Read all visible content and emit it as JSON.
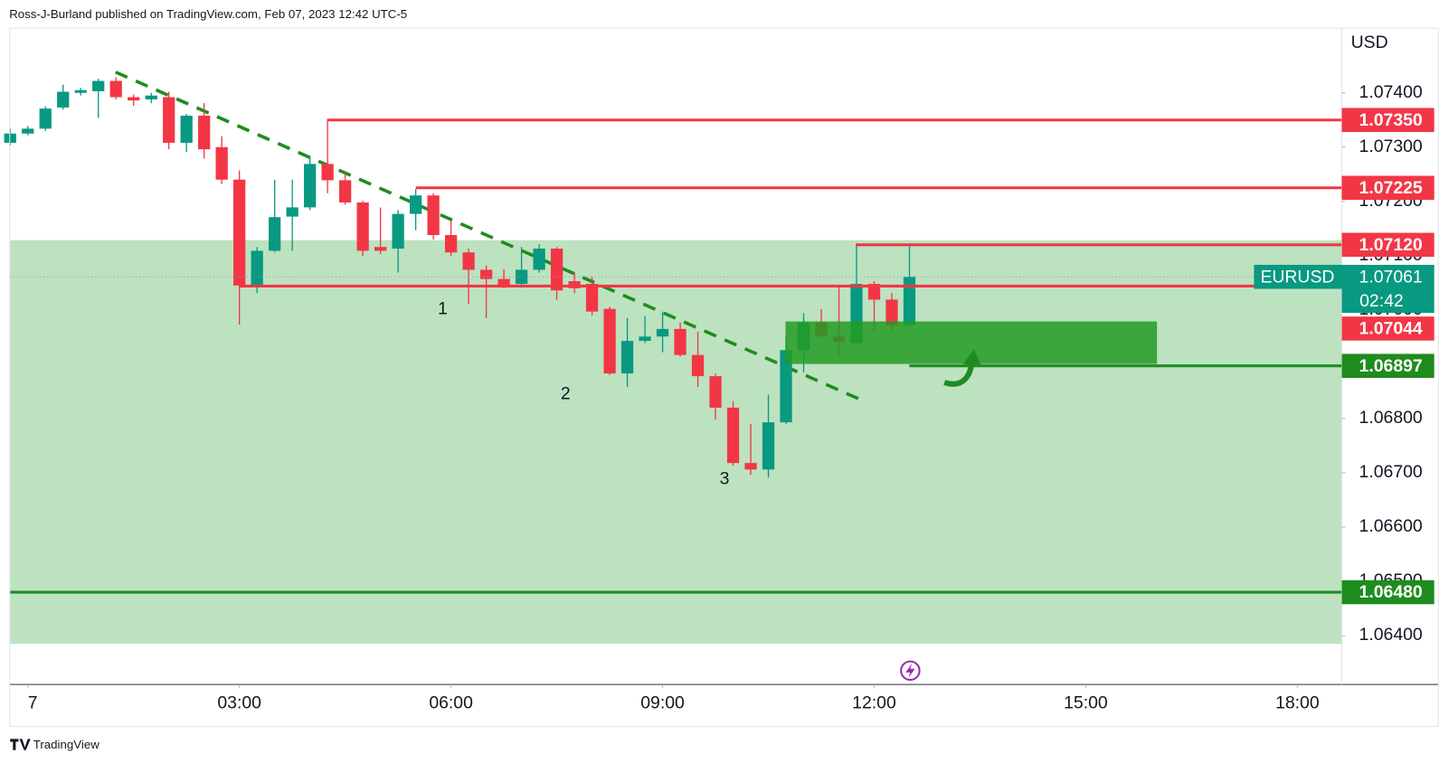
{
  "header": "Ross-J-Burland published on TradingView.com, Feb 07, 2023 12:42 UTC-5",
  "footer": "TradingView",
  "chart_data": {
    "type": "candlestick",
    "symbol": "EURUSD",
    "currency": "USD",
    "countdown": "02:42",
    "up_color": "#089981",
    "down_color": "#f23645",
    "x": [
      -0.25,
      0,
      0.25,
      0.5,
      0.75,
      1,
      1.25,
      1.5,
      1.75,
      2,
      2.25,
      2.5,
      2.75,
      3,
      3.25,
      3.5,
      3.75,
      4,
      4.25,
      4.5,
      4.75,
      5,
      5.25,
      5.5,
      5.75,
      6,
      6.25,
      6.5,
      6.75,
      7,
      7.25,
      7.5,
      7.75,
      8,
      8.25,
      8.5,
      8.75,
      9,
      9.25,
      9.5,
      9.75,
      10,
      10.25,
      10.5,
      10.75,
      11,
      11.25,
      11.5,
      11.75,
      12,
      12.25,
      12.5
    ],
    "open": [
      1.07308,
      1.07325,
      1.07334,
      1.07373,
      1.074,
      1.07403,
      1.07422,
      1.07392,
      1.07388,
      1.07392,
      1.07308,
      1.07358,
      1.073,
      1.0724,
      1.07045,
      1.07109,
      1.07172,
      1.07189,
      1.07269,
      1.07239,
      1.07198,
      1.07116,
      1.07113,
      1.07177,
      1.07211,
      1.07138,
      1.07106,
      1.07074,
      1.07057,
      1.07048,
      1.07074,
      1.07113,
      1.07053,
      1.07048,
      1.07002,
      1.06883,
      1.06943,
      1.06951,
      1.06965,
      1.06917,
      1.06878,
      1.0682,
      1.06718,
      1.06706,
      1.06793,
      1.06926,
      1.06977,
      1.06951,
      1.06939,
      1.07048,
      1.07019,
      1.06972
    ],
    "high": [
      1.07334,
      1.07339,
      1.07375,
      1.07415,
      1.07409,
      1.07426,
      1.07429,
      1.07397,
      1.074,
      1.07402,
      1.07361,
      1.07381,
      1.0732,
      1.07257,
      1.07116,
      1.0724,
      1.0724,
      1.07283,
      1.07351,
      1.07256,
      1.07201,
      1.07189,
      1.07184,
      1.07223,
      1.07215,
      1.07164,
      1.07113,
      1.07082,
      1.07075,
      1.07116,
      1.07121,
      1.07116,
      1.0707,
      1.07061,
      1.07006,
      1.06985,
      1.06989,
      1.06997,
      1.06977,
      1.0696,
      1.06883,
      1.06832,
      1.0679,
      1.06844,
      1.06951,
      1.06994,
      1.07002,
      1.07045,
      1.07121,
      1.07053,
      1.07031,
      1.07121
    ],
    "low": [
      1.07303,
      1.07322,
      1.0733,
      1.07369,
      1.07395,
      1.07354,
      1.07388,
      1.07376,
      1.07381,
      1.07296,
      1.07291,
      1.07279,
      1.07232,
      1.06973,
      1.07031,
      1.07106,
      1.07109,
      1.07184,
      1.07215,
      1.07194,
      1.07099,
      1.07103,
      1.07069,
      1.07147,
      1.0713,
      1.07099,
      1.07011,
      1.06985,
      1.0704,
      1.07041,
      1.07069,
      1.07019,
      1.07031,
      1.0699,
      1.0688,
      1.06858,
      1.06939,
      1.06922,
      1.06914,
      1.06858,
      1.06798,
      1.06713,
      1.06696,
      1.06691,
      1.0679,
      1.06885,
      1.06946,
      1.06917,
      1.06934,
      1.0696,
      1.06963,
      1.06968
    ],
    "close": [
      1.07325,
      1.07334,
      1.07371,
      1.07402,
      1.07405,
      1.07422,
      1.07392,
      1.07386,
      1.07395,
      1.07308,
      1.07358,
      1.07296,
      1.0724,
      1.07045,
      1.07109,
      1.07171,
      1.07189,
      1.07269,
      1.07239,
      1.07198,
      1.07109,
      1.07109,
      1.07177,
      1.07211,
      1.07138,
      1.07106,
      1.07074,
      1.07057,
      1.07046,
      1.07074,
      1.07113,
      1.07036,
      1.0704,
      1.06997,
      1.06883,
      1.06943,
      1.06951,
      1.06965,
      1.06917,
      1.06878,
      1.0682,
      1.06718,
      1.06706,
      1.06793,
      1.06926,
      1.06977,
      1.06951,
      1.06941,
      1.07048,
      1.07019,
      1.06972,
      1.07061
    ],
    "last_price": {
      "value": 1.07061,
      "label": "1.07061"
    },
    "xlim": [
      -0.25,
      18.63
    ],
    "xticks": [
      {
        "value": 0,
        "label": "7"
      },
      {
        "value": 3,
        "label": "03:00"
      },
      {
        "value": 6,
        "label": "06:00"
      },
      {
        "value": 9,
        "label": "09:00"
      },
      {
        "value": 12,
        "label": "12:00"
      },
      {
        "value": 15,
        "label": "15:00"
      },
      {
        "value": 18,
        "label": "18:00"
      }
    ],
    "ylim": [
      1.0631,
      1.0752
    ],
    "yticks": [
      {
        "value": 1.064,
        "label": "1.06400"
      },
      {
        "value": 1.065,
        "label": "1.06500"
      },
      {
        "value": 1.066,
        "label": "1.06600"
      },
      {
        "value": 1.067,
        "label": "1.06700"
      },
      {
        "value": 1.068,
        "label": "1.06800"
      },
      {
        "value": 1.069,
        "label": "1.06900"
      },
      {
        "value": 1.07,
        "label": "1.07000"
      },
      {
        "value": 1.071,
        "label": "1.07100"
      },
      {
        "value": 1.072,
        "label": "1.07200"
      },
      {
        "value": 1.073,
        "label": "1.07300"
      },
      {
        "value": 1.074,
        "label": "1.07400"
      }
    ],
    "levels": [
      {
        "value": 1.0735,
        "label": "1.07350",
        "color": "#f23645"
      },
      {
        "value": 1.07225,
        "label": "1.07225",
        "color": "#f23645"
      },
      {
        "value": 1.0712,
        "label": "1.07120",
        "color": "#f23645"
      },
      {
        "value": 1.07044,
        "label": "1.07044",
        "color": "#f23645"
      },
      {
        "value": 1.06897,
        "label": "1.06897",
        "color": "#1f8c1f"
      },
      {
        "value": 1.0648,
        "label": "1.06480",
        "color": "#1f8c1f"
      }
    ],
    "annotations": [
      "1",
      "2",
      "3"
    ]
  }
}
